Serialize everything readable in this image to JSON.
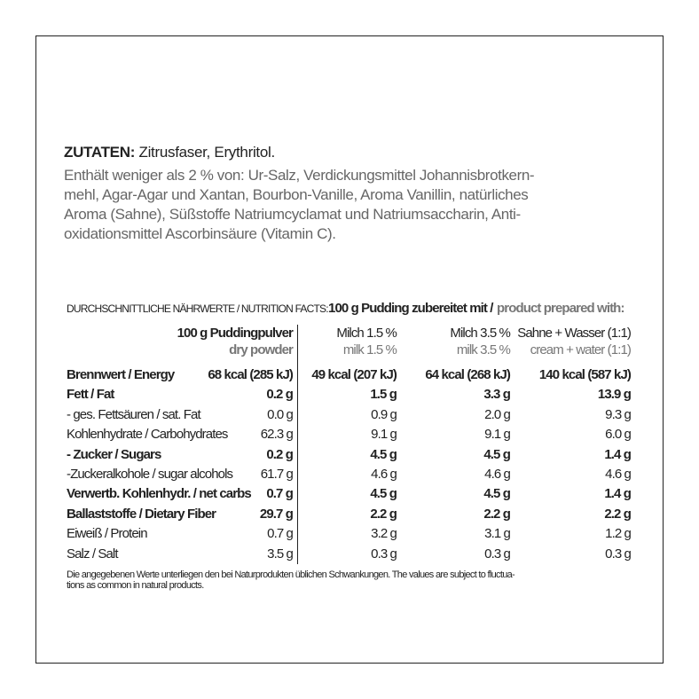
{
  "ingredients": {
    "label": "ZUTATEN:",
    "main": "Zitrusfaser, Erythritol.",
    "lines": [
      "Enthält weniger als 2 % von: Ur-Salz, Verdickungsmittel Johannisbrotkern-",
      "mehl, Agar-Agar und Xantan, Bourbon-Vanille, Aroma Vanillin, natürliches",
      "Aroma (Sahne), Süßstoffe Natriumcyclamat und Natriumsaccharin, Anti-",
      "oxidationsmittel Ascorbinsäure (Vitamin C)."
    ]
  },
  "table": {
    "title": "DURCHSCHNITTLICHE NÄHRWERTE / NUTRITION FACTS:",
    "prepared": "100 g Pudding zubereitet mit /",
    "prepared_en": "product prepared with:",
    "columns": [
      {
        "de": "100 g Puddingpulver",
        "en": "dry powder"
      },
      {
        "de": "Milch 1.5 %",
        "en": "milk 1.5 %"
      },
      {
        "de": "Milch 3.5 %",
        "en": "milk 3.5 %"
      },
      {
        "de": "Sahne + Wasser (1:1)",
        "en": "cream + water (1:1)"
      }
    ],
    "rows": [
      {
        "label": "Brennwert / Energy",
        "style": "bold",
        "values": [
          "68 kcal (285 kJ)",
          "49 kcal (207 kJ)",
          "64 kcal (268 kJ)",
          "140 kcal (587 kJ)"
        ]
      },
      {
        "label": "Fett / Fat",
        "style": "bold",
        "values": [
          "0.2 g",
          "1.5 g",
          "3.3 g",
          "13.9 g"
        ]
      },
      {
        "label": "- ges. Fettsäuren / sat. Fat",
        "style": "normal",
        "values": [
          "0.0 g",
          "0.9 g",
          "2.0 g",
          "9.3 g"
        ]
      },
      {
        "label": "Kohlenhydrate / Carbohydrates",
        "style": "normal",
        "values": [
          "62.3 g",
          "9.1 g",
          "9.1 g",
          "6.0 g"
        ]
      },
      {
        "label": "- Zucker / Sugars",
        "style": "bold",
        "values": [
          "0.2 g",
          "4.5 g",
          "4.5 g",
          "1.4 g"
        ]
      },
      {
        "label": "-Zuckeralkohole / sugar alcohols",
        "style": "normal",
        "values": [
          "61.7 g",
          "4.6 g",
          "4.6 g",
          "4.6 g"
        ]
      },
      {
        "label": "Verwertb. Kohlenhydr. / net carbs",
        "style": "bold",
        "values": [
          "0.7 g",
          "4.5 g",
          "4.5 g",
          "1.4 g"
        ]
      },
      {
        "label": "Ballaststoffe / Dietary Fiber",
        "style": "bold",
        "values": [
          "29.7 g",
          "2.2 g",
          "2.2 g",
          "2.2 g"
        ]
      },
      {
        "label": "Eiweiß / Protein",
        "style": "normal",
        "values": [
          "0.7 g",
          "3.2 g",
          "3.1 g",
          "1.2 g"
        ]
      },
      {
        "label": "Salz / Salt",
        "style": "normal",
        "values": [
          "3.5 g",
          "0.3 g",
          "0.3 g",
          "0.3 g"
        ]
      }
    ]
  },
  "footnote": [
    "Die angegebenen Werte unterliegen den bei Naturprodukten üblichen Schwankungen. The values are subject to fluctua-",
    "tions as common in natural products."
  ]
}
